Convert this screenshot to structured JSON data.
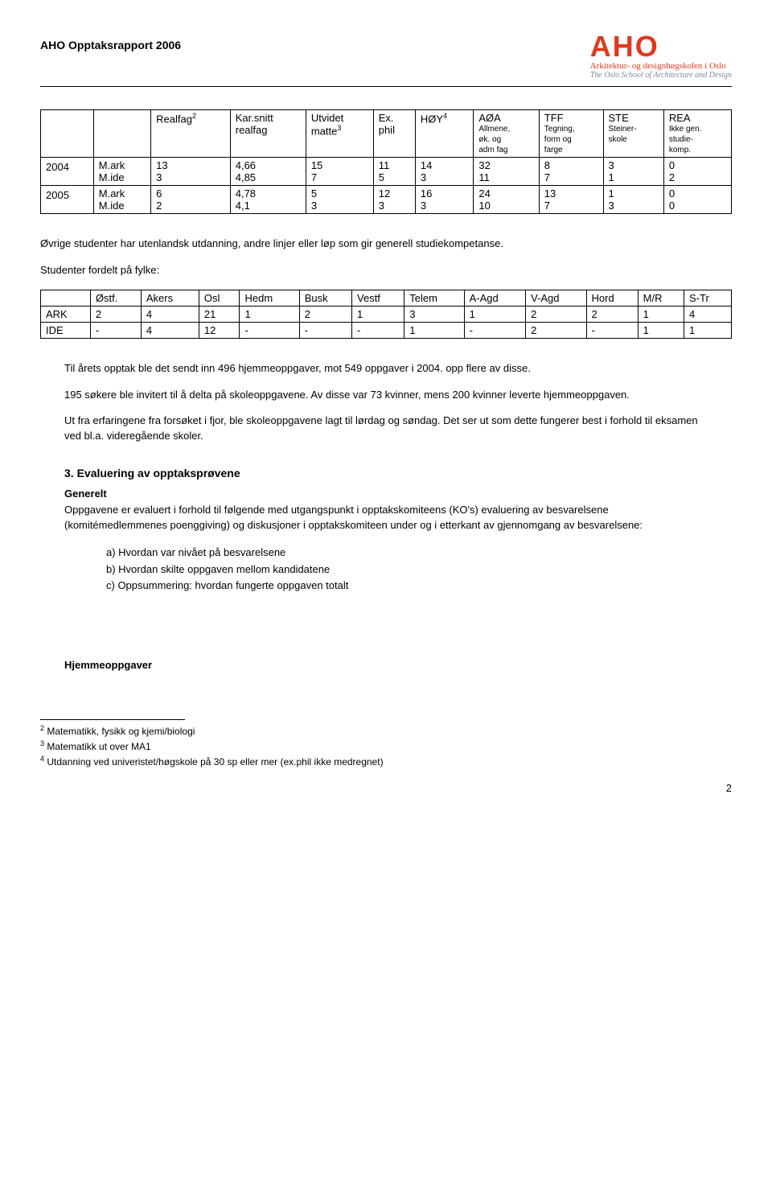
{
  "header": {
    "title": "AHO Opptaksrapport 2006",
    "logo_main": "AHO",
    "logo_sub1": "Arkitektur- og designhøgskolen i Oslo",
    "logo_sub2": "The Oslo School of Architecture and Design"
  },
  "table1": {
    "headers": [
      {
        "main": "",
        "sub": ""
      },
      {
        "main": "Realfag",
        "sup": "2",
        "sub": ""
      },
      {
        "main": "Kar.snitt realfag",
        "sub": ""
      },
      {
        "main": "Utvidet matte",
        "sup": "3",
        "sub": ""
      },
      {
        "main": "Ex. phil",
        "sub": ""
      },
      {
        "main": "HØY",
        "sup": "4",
        "sub": ""
      },
      {
        "main": "AØA",
        "sub": "Allmene, øk. og adm fag"
      },
      {
        "main": "TFF",
        "sub": "Tegning, form og farge"
      },
      {
        "main": "STE",
        "sub": "Steiner-skole"
      },
      {
        "main": "REA",
        "sub": "Ikke gen. studie-komp."
      }
    ],
    "rows": [
      {
        "year": "2004",
        "rlabel": "M.ark\nM.ide",
        "c": [
          "13\n3",
          "4,66\n4,85",
          "15\n7",
          "11\n5",
          "14\n3",
          "32\n11",
          "8\n7",
          "3\n1",
          "0\n2"
        ]
      },
      {
        "year": "2005",
        "rlabel": "M.ark\nM.ide",
        "c": [
          "6\n2",
          "4,78\n4,1",
          "5\n3",
          "12\n3",
          "16\n3",
          "24\n10",
          "13\n7",
          "1\n3",
          "0\n0"
        ]
      }
    ]
  },
  "para1": "Øvrige studenter har utenlandsk utdanning, andre linjer eller løp som gir generell studiekompetanse.",
  "para2": "Studenter fordelt på fylke:",
  "table2": {
    "headers": [
      "",
      "Østf.",
      "Akers",
      "Osl",
      "Hedm",
      "Busk",
      "Vestf",
      "Telem",
      "A-Agd",
      "V-Agd",
      "Hord",
      "M/R",
      "S-Tr"
    ],
    "rows": [
      [
        "ARK",
        "2",
        "4",
        "21",
        "1",
        "2",
        "1",
        "3",
        "1",
        "2",
        "2",
        "1",
        "4"
      ],
      [
        "IDE",
        "-",
        "4",
        "12",
        "-",
        "-",
        "-",
        "1",
        "-",
        "2",
        "-",
        "1",
        "1"
      ]
    ]
  },
  "para3": "Til årets opptak ble det sendt inn 496 hjemmeoppgaver, mot 549 oppgaver i 2004. opp flere av disse.",
  "para4": "195 søkere ble invitert til å delta på skoleoppgavene. Av disse var 73 kvinner, mens 200 kvinner leverte hjemmeoppgaven.",
  "para5": "Ut fra erfaringene fra forsøket i fjor, ble skoleoppgavene lagt til lørdag og søndag. Det ser ut som dette fungerer best i forhold til eksamen ved bl.a. videregående skoler.",
  "section3": {
    "title": "3. Evaluering av opptaksprøvene",
    "sub": "Generelt",
    "intro": "Oppgavene er evaluert i forhold til følgende med utgangspunkt i opptakskomiteens (KO's) evaluering av besvarelsene (komitémedlemmenes poenggiving) og diskusjoner i opptakskomiteen under og i etterkant av gjennomgang av besvarelsene:",
    "items": [
      "a) Hvordan var nivået på besvarelsene",
      "b) Hvordan skilte oppgaven mellom kandidatene",
      "c) Oppsummering: hvordan fungerte oppgaven totalt"
    ],
    "sub2": "Hjemmeoppgaver"
  },
  "footnotes": [
    {
      "n": "2",
      "t": "Matematikk, fysikk og kjemi/biologi"
    },
    {
      "n": "3",
      "t": "Matematikk ut over MA1"
    },
    {
      "n": "4",
      "t": "Utdanning ved univeristet/høgskole på 30 sp eller mer (ex.phil ikke medregnet)"
    }
  ],
  "pagenum": "2"
}
